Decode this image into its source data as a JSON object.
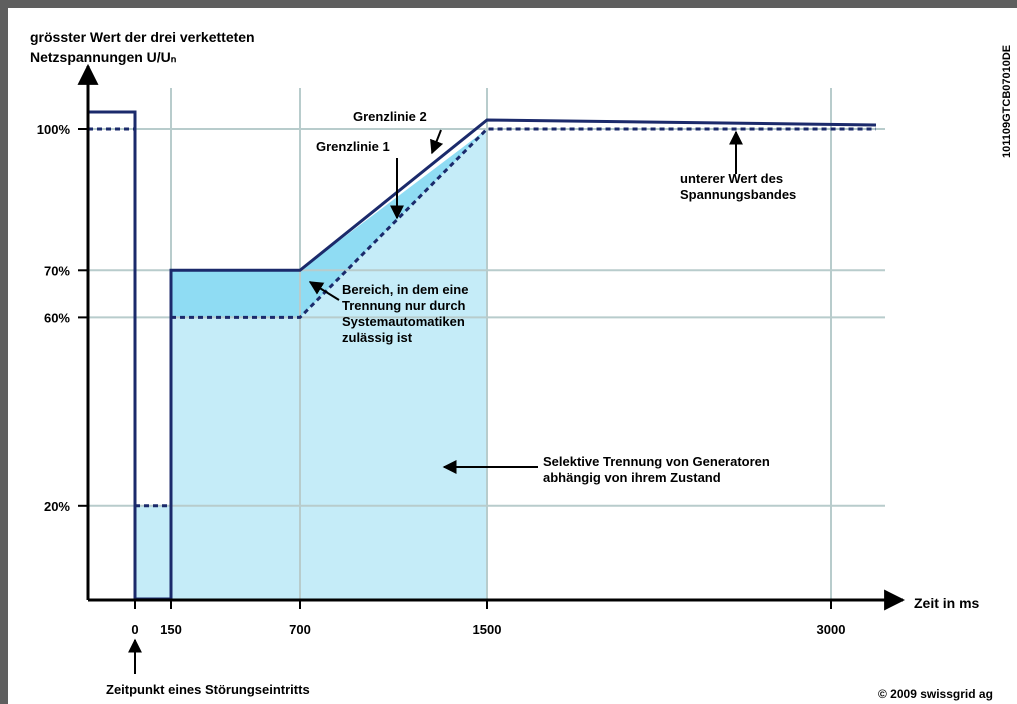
{
  "chart_data": {
    "type": "line",
    "ylabel_lines": [
      "grösster Wert der drei verketteten",
      "Netzspannungen U/Uₙ"
    ],
    "xlabel": "Zeit in ms",
    "y_ticks": [
      {
        "value": 100,
        "label": "100%"
      },
      {
        "value": 70,
        "label": "70%"
      },
      {
        "value": 60,
        "label": "60%"
      },
      {
        "value": 20,
        "label": "20%"
      }
    ],
    "x_ticks": [
      {
        "value": 0,
        "label": "0"
      },
      {
        "value": 150,
        "label": "150"
      },
      {
        "value": 700,
        "label": "700"
      },
      {
        "value": 1500,
        "label": "1500"
      },
      {
        "value": 3000,
        "label": "3000"
      }
    ],
    "x_axis_scale": "piecewise",
    "series": [
      {
        "name": "Grenzlinie 2",
        "style": "solid",
        "points": [
          [
            0,
            100
          ],
          [
            150,
            70
          ],
          [
            700,
            70
          ],
          [
            1500,
            100
          ],
          [
            3000,
            100
          ]
        ]
      },
      {
        "name": "Grenzlinie 1",
        "style": "dashed",
        "points": [
          [
            150,
            60
          ],
          [
            700,
            60
          ],
          [
            1500,
            100
          ],
          [
            3000,
            100
          ]
        ]
      }
    ],
    "fault_step": {
      "solid": "U drops to 0 at t=0 and stays 0 until t=150, then rises to 70",
      "dashdot_levels": [
        100,
        20
      ]
    },
    "regions": [
      {
        "label_lines": [
          "Bereich, in dem eine",
          "Trennung nur durch",
          "Systemautomatiken",
          "zulässig ist"
        ],
        "color": "#8fdcf3"
      },
      {
        "label_lines": [
          "Selektive Trennung von Generatoren",
          "abhängig von ihrem Zustand"
        ],
        "color": "#c5ecf8"
      }
    ],
    "annotations": {
      "lower_band_lines": [
        "unterer Wert des",
        "Spannungsbandes"
      ],
      "fault_time": "Zeitpunkt eines Störungseintritts"
    },
    "colors": {
      "line": "#1b2a6b",
      "grid": "#b8cccc",
      "light_fill": "#c5ecf8",
      "dark_fill": "#8fdcf3"
    },
    "grid": true
  },
  "side_code": "101109GTCB07010DE",
  "copyright": "© 2009 swissgrid ag"
}
